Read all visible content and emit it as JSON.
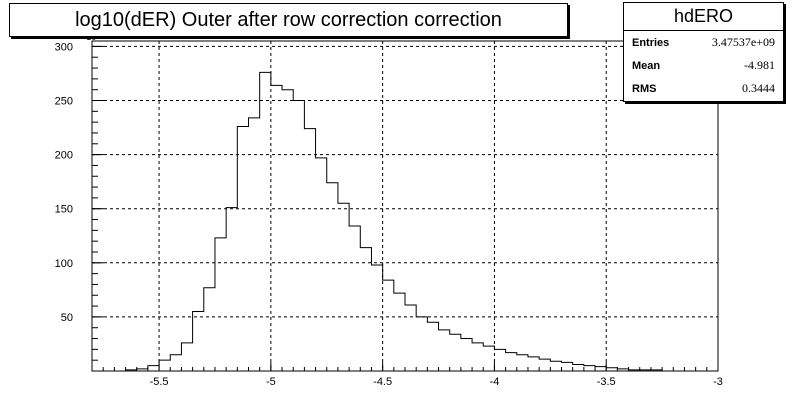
{
  "chart_data": {
    "type": "histogram",
    "title": "log10(dER) Outer after row correction  correction",
    "xlabel": "",
    "ylabel": "",
    "xlim": [
      -5.8,
      -3.0
    ],
    "ylim": [
      0,
      305
    ],
    "y_scale_label": "×10³",
    "xticks": [
      "-5.5",
      "-5",
      "-4.5",
      "-4",
      "-3.5",
      "-3"
    ],
    "yticks": [
      "50",
      "100",
      "150",
      "200",
      "250",
      "300"
    ],
    "grid": true,
    "bin_width": 0.05,
    "bin_edges_start": -5.8,
    "values": [
      0,
      0,
      0,
      1,
      2,
      5,
      10,
      15,
      26,
      55,
      77,
      123,
      151,
      226,
      234,
      276,
      264,
      260,
      250,
      224,
      197,
      174,
      155,
      134,
      114,
      98,
      84,
      72,
      61,
      50,
      45,
      38,
      34,
      30,
      26,
      23,
      20,
      17,
      15,
      13,
      11,
      9,
      8,
      6,
      5,
      4,
      3,
      2,
      1,
      1,
      1,
      0,
      0,
      0,
      0,
      0
    ]
  },
  "stats": {
    "name": "hdERO",
    "rows": [
      {
        "label": "Entries",
        "value": "3.47537e+09"
      },
      {
        "label": "Mean",
        "value": "-4.981"
      },
      {
        "label": "RMS",
        "value": "0.3444"
      }
    ]
  }
}
